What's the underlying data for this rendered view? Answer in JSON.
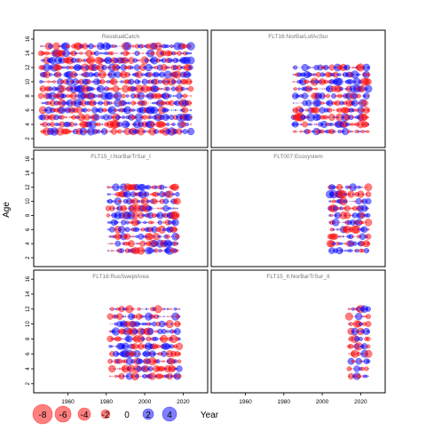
{
  "chart_data": {
    "type": "scatter",
    "subtype": "bubble-residual-panels",
    "ylabel": "Age",
    "xlabel": "Year",
    "shared_x_ticks": [
      1960,
      1980,
      2000,
      2020
    ],
    "shared_y_ticks": [
      2,
      4,
      6,
      8,
      10,
      12,
      14,
      16
    ],
    "xlim": [
      1945,
      2030
    ],
    "ylim": [
      1.5,
      16.5
    ],
    "colors": {
      "negative": "#ff0000",
      "positive": "#0000ff",
      "panel_border": "#000000",
      "panel_title": "#777777"
    },
    "legend": {
      "placement": "bottom",
      "values": [
        "-8",
        "-6",
        "-4",
        "-2",
        "0",
        "2",
        "4"
      ],
      "title": "Year"
    },
    "panels": [
      {
        "title": "ResidualCatch",
        "years": [
          1946,
          2024
        ],
        "ages": [
          3,
          15
        ],
        "seed": 11
      },
      {
        "title": "FLT16:NorBarLofAcSur",
        "years": [
          1985,
          2024
        ],
        "ages": [
          3,
          12
        ],
        "seed": 23
      },
      {
        "title": "FLT15_I:NorBarTrSur_I",
        "years": [
          1981,
          2017
        ],
        "ages": [
          3,
          12
        ],
        "seed": 37
      },
      {
        "title": "FLT007:Ecosystem",
        "years": [
          2004,
          2024
        ],
        "ages": [
          3,
          12
        ],
        "seed": 41
      },
      {
        "title": "FLT18:RusSweptArea",
        "years": [
          1982,
          2018
        ],
        "ages": [
          3,
          12
        ],
        "seed": 53
      },
      {
        "title": "FLT15_II:NorBarTrSur_II",
        "years": [
          2014,
          2024
        ],
        "ages": [
          3,
          12
        ],
        "seed": 67
      }
    ]
  }
}
